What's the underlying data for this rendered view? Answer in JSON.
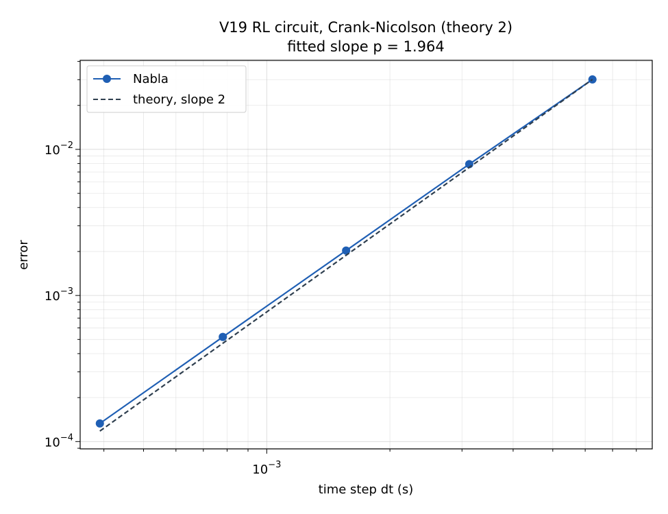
{
  "chart_data": {
    "type": "line",
    "title_line1": "V19 RL circuit, Crank-Nicolson (theory 2)",
    "title_line2": "fitted slope p = 1.964",
    "xlabel": "time step dt (s)",
    "ylabel": "error",
    "x_scale": "log",
    "y_scale": "log",
    "xlim": [
      0.00035,
      0.00875
    ],
    "ylim": [
      8.91e-05,
      0.0407
    ],
    "x_ticks": [
      {
        "value": 0.001,
        "base": "10",
        "exp": "−3"
      }
    ],
    "y_ticks": [
      {
        "value": 0.0001,
        "base": "10",
        "exp": "−4"
      },
      {
        "value": 0.001,
        "base": "10",
        "exp": "−3"
      },
      {
        "value": 0.01,
        "base": "10",
        "exp": "−2"
      }
    ],
    "grid": true,
    "legend_position": "upper left",
    "series": [
      {
        "name": "Nabla",
        "color": "#1f5fb4",
        "style": "solid",
        "marker": "circle",
        "x": [
          0.000391,
          0.000781,
          0.001563,
          0.003125,
          0.00625
        ],
        "y": [
          0.000133,
          0.00052,
          0.00203,
          0.00792,
          0.0301
        ]
      },
      {
        "name": "theory, slope 2",
        "color": "#2f3f4f",
        "style": "dashed",
        "marker": "none",
        "x": [
          0.000391,
          0.00625
        ],
        "y": [
          0.000118,
          0.0301
        ]
      }
    ]
  }
}
